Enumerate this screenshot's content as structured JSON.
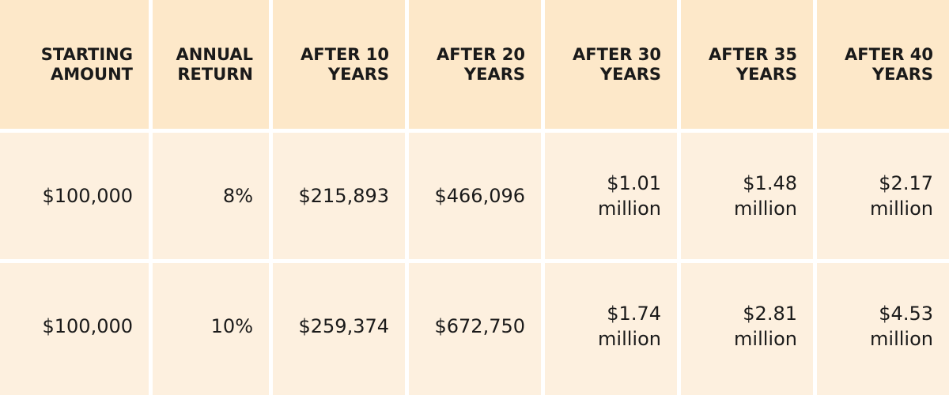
{
  "table": {
    "header": [
      [
        "STARTING",
        "AMOUNT"
      ],
      [
        "ANNUAL",
        "RETURN"
      ],
      [
        "AFTER 10",
        "YEARS"
      ],
      [
        "AFTER 20",
        "YEARS"
      ],
      [
        "AFTER 30",
        "YEARS"
      ],
      [
        "AFTER 35",
        "YEARS"
      ],
      [
        "AFTER 40",
        "YEARS"
      ]
    ],
    "rows": [
      [
        [
          "$100,000"
        ],
        [
          "8%"
        ],
        [
          "$215,893"
        ],
        [
          "$466,096"
        ],
        [
          "$1.01",
          "million"
        ],
        [
          "$1.48",
          "million"
        ],
        [
          "$2.17",
          "million"
        ]
      ],
      [
        [
          "$100,000"
        ],
        [
          "10%"
        ],
        [
          "$259,374"
        ],
        [
          "$672,750"
        ],
        [
          "$1.74",
          "million"
        ],
        [
          "$2.81",
          "million"
        ],
        [
          "$4.53",
          "million"
        ]
      ]
    ]
  }
}
